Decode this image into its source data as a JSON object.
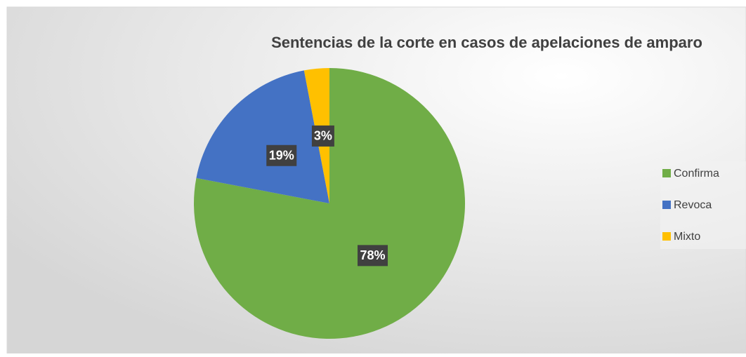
{
  "chart_data": {
    "type": "pie",
    "title": "Sentencias de la corte en casos de apelaciones de amparo",
    "categories": [
      "Confirma",
      "Revoca",
      "Mixto"
    ],
    "values": [
      78,
      19,
      3
    ],
    "value_labels": [
      "78%",
      "19%",
      "3%"
    ],
    "colors": [
      "#70ad47",
      "#4472c4",
      "#ffc000"
    ],
    "legend": "right"
  }
}
